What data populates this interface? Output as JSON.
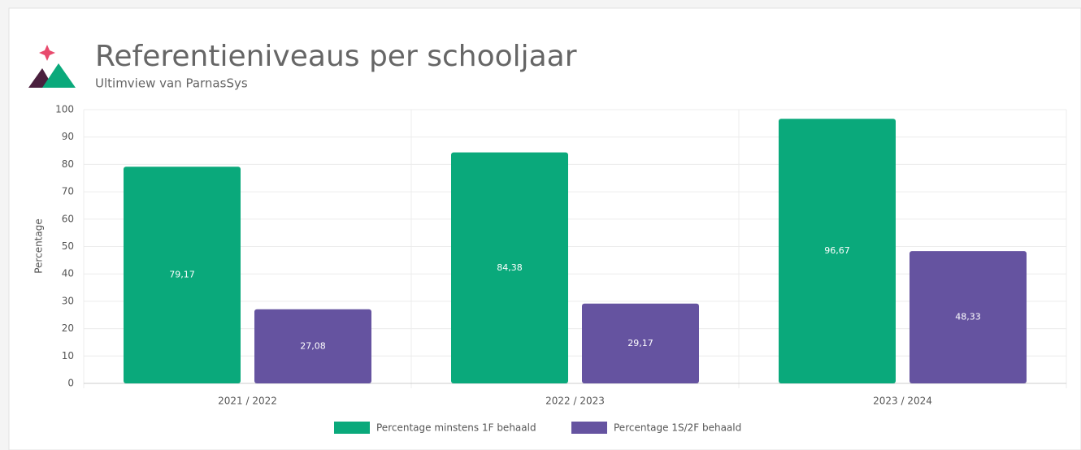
{
  "chart_data": {
    "type": "bar",
    "title": "Referentieniveaus per schooljaar",
    "subtitle": "Ultimview van ParnasSys",
    "y_label": "Percentage",
    "categories": [
      "2021 / 2022",
      "2022 / 2023",
      "2023 / 2024"
    ],
    "series": [
      {
        "name": "Percentage minstens 1F behaald",
        "color": "#0aa97b",
        "values": [
          79.17,
          84.38,
          96.67
        ],
        "value_labels": [
          "79,17",
          "84,38",
          "96,67"
        ]
      },
      {
        "name": "Percentage 1S/2F behaald",
        "color": "#6553a0",
        "values": [
          27.08,
          29.17,
          48.33
        ],
        "value_labels": [
          "27,08",
          "29,17",
          "48,33"
        ]
      }
    ],
    "ylim": [
      0,
      100
    ],
    "yticks": [
      0,
      10,
      20,
      30,
      40,
      50,
      60,
      70,
      80,
      90,
      100
    ],
    "grid": true
  }
}
